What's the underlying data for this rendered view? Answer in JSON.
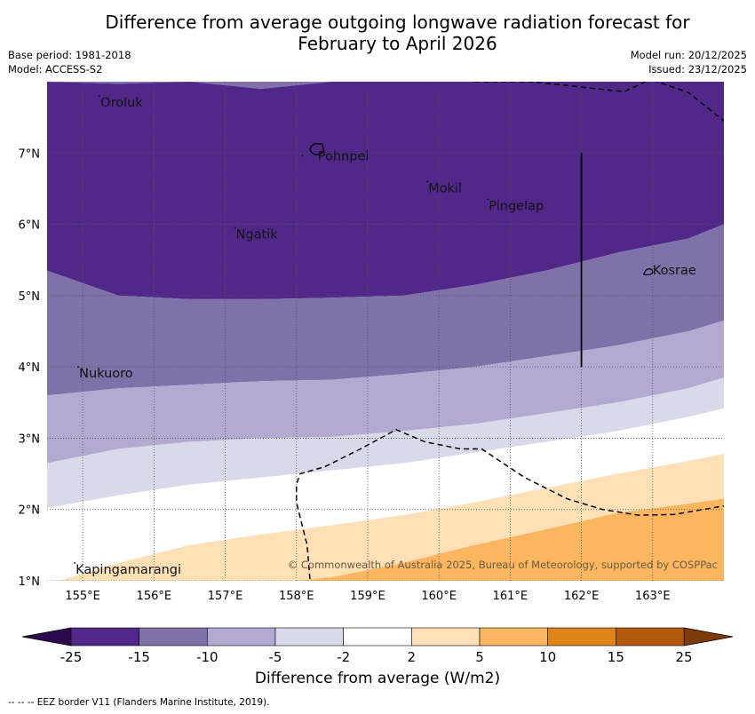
{
  "header": {
    "title_line1": "Difference from average outgoing longwave radiation forecast for",
    "title_line2": "February to April 2026",
    "base_period": "Base period: 1981-2018",
    "model": "Model: ACCESS-S2",
    "model_run": "Model run: 20/12/2025",
    "issued": "Issued: 23/12/2025"
  },
  "map": {
    "extent": {
      "lon": [
        154.5,
        164.0
      ],
      "lat": [
        1.0,
        8.0
      ]
    },
    "lon_ticks": [
      "155°E",
      "156°E",
      "157°E",
      "158°E",
      "159°E",
      "160°E",
      "161°E",
      "162°E",
      "163°E"
    ],
    "lon_values": [
      155,
      156,
      157,
      158,
      159,
      160,
      161,
      162,
      163
    ],
    "lat_ticks": [
      "1°N",
      "2°N",
      "3°N",
      "4°N",
      "5°N",
      "6°N",
      "7°N"
    ],
    "lat_values": [
      1,
      2,
      3,
      4,
      5,
      6,
      7
    ],
    "places": [
      {
        "name": "Oroluk",
        "lon": 155.25,
        "lat": 7.65
      },
      {
        "name": "Pohnpei",
        "lon": 158.3,
        "lat": 6.9
      },
      {
        "name": "Mokil",
        "lon": 159.85,
        "lat": 6.45
      },
      {
        "name": "Pingelap",
        "lon": 160.7,
        "lat": 6.2
      },
      {
        "name": "Ngatik",
        "lon": 157.15,
        "lat": 5.8
      },
      {
        "name": "Kosrae",
        "lon": 163.0,
        "lat": 5.3
      },
      {
        "name": "Nukuoro",
        "lon": 154.95,
        "lat": 3.85
      },
      {
        "name": "Kapingamarangi",
        "lon": 154.9,
        "lat": 1.1
      }
    ],
    "copyright": "© Commonwealth of Australia 2025, Bureau of Meteorology, supported by COSPPac",
    "contours": {
      "lons": [
        154.5,
        155.5,
        156.5,
        157.5,
        158.5,
        159.5,
        160.5,
        161.5,
        162.5,
        163.5,
        164.0
      ],
      "b_m15_m10_north": [
        8.0,
        7.97,
        8.0,
        7.9,
        8.0,
        8.0,
        8.0,
        8.0,
        8.0,
        8.0,
        8.0
      ],
      "b_m15_m10": [
        5.35,
        5.0,
        4.95,
        4.95,
        4.97,
        5.0,
        5.15,
        5.35,
        5.6,
        5.8,
        6.0
      ],
      "b_m10_m5": [
        3.6,
        3.7,
        3.75,
        3.8,
        3.82,
        3.9,
        4.0,
        4.15,
        4.3,
        4.5,
        4.65
      ],
      "b_m5_m2": [
        2.65,
        2.85,
        2.95,
        3.0,
        3.02,
        3.1,
        3.2,
        3.35,
        3.5,
        3.7,
        3.85
      ],
      "b_m2_p2": [
        2.02,
        2.2,
        2.35,
        2.45,
        2.55,
        2.65,
        2.8,
        2.95,
        3.1,
        3.3,
        3.42
      ],
      "b_p2_p5": [
        0.95,
        1.25,
        1.5,
        1.65,
        1.78,
        1.92,
        2.1,
        2.3,
        2.5,
        2.68,
        2.78
      ],
      "b_p5_p10": [
        0.9,
        0.9,
        0.9,
        0.95,
        1.05,
        1.25,
        1.5,
        1.72,
        1.95,
        2.08,
        2.15
      ]
    }
  },
  "colorbar": {
    "ticks": [
      "-25",
      "-15",
      "-10",
      "-5",
      "-2",
      "2",
      "5",
      "10",
      "15",
      "25"
    ],
    "colors": [
      "#512889",
      "#7f72a9",
      "#b2aad1",
      "#d9d9e9",
      "#ffffff",
      "#fde0b5",
      "#fcb660",
      "#e08418",
      "#b3590d"
    ],
    "under_color": "#2d0a4f",
    "over_color": "#7e3b0a",
    "label": "Difference from average (W/m2)"
  },
  "legend_note": "--  --  -- EEZ border V11 (Flanders Marine Institute, 2019)."
}
